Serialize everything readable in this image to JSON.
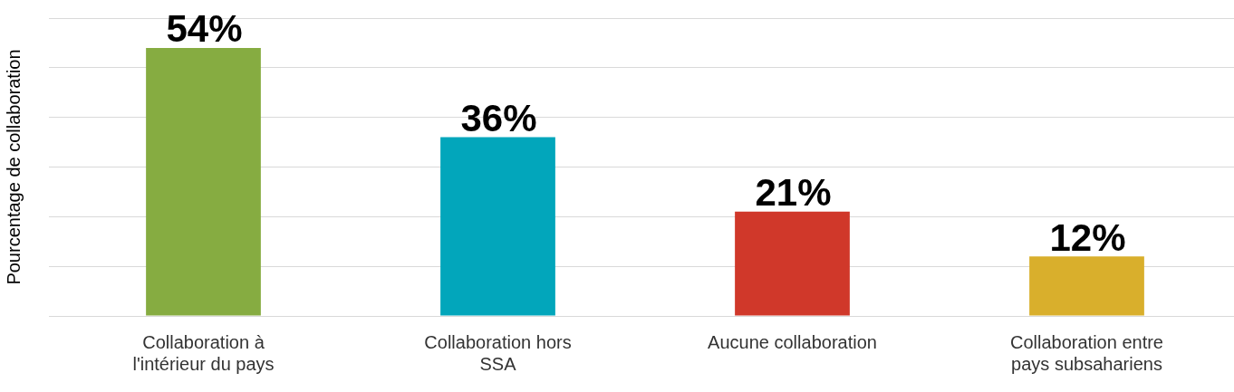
{
  "chart_data": {
    "type": "bar",
    "ylabel": "Pourcentage de collaboration",
    "categories": [
      "Collaboration à l'intérieur du pays",
      "Collaboration hors SSA",
      "Aucune collaboration",
      "Collaboration entre pays subsahariens"
    ],
    "values": [
      54,
      36,
      21,
      12
    ],
    "colors": [
      "#86ac41",
      "#02a6bb",
      "#d0382a",
      "#d9af2c"
    ],
    "value_labels": [
      "54%",
      "36%",
      "21%",
      "12%"
    ],
    "ylim": [
      0,
      60
    ],
    "yticks": [
      {
        "value": 0,
        "label": null
      },
      {
        "value": 10,
        "label": null
      },
      {
        "value": 20,
        "label": null
      },
      {
        "value": 30,
        "label": null
      },
      {
        "value": 40,
        "label": null
      },
      {
        "value": 50,
        "label": null
      },
      {
        "value": 60,
        "label": null
      }
    ],
    "grid": "y",
    "legend": false
  }
}
